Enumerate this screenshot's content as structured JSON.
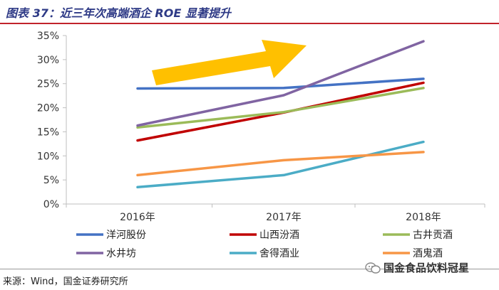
{
  "header": {
    "figure_title": "图表 37：近三年次高端酒企 ROE 显著提升"
  },
  "footer": {
    "source": "来源：Wind，国金证券研究所",
    "watermark": "国金食品饮料冠星"
  },
  "colors": {
    "title": "#2e3a86",
    "rule": "#c1232b",
    "arrow": "#ffc000",
    "grid_axis": "#bfbfbf"
  },
  "chart_data": {
    "type": "line",
    "title": "",
    "xlabel": "",
    "ylabel": "",
    "categories": [
      "2016年",
      "2017年",
      "2018年"
    ],
    "ylim": [
      0,
      35
    ],
    "yticks": [
      "0%",
      "5%",
      "10%",
      "15%",
      "20%",
      "25%",
      "30%",
      "35%"
    ],
    "ytick_values": [
      0,
      5,
      10,
      15,
      20,
      25,
      30,
      35
    ],
    "grid": false,
    "legend_position": "bottom",
    "annotation": "upward-arrow",
    "series": [
      {
        "name": "洋河股份",
        "values": [
          24.0,
          24.1,
          26.0
        ],
        "color": "#4472c4"
      },
      {
        "name": "山西汾酒",
        "values": [
          13.2,
          19.0,
          25.2
        ],
        "color": "#c00000"
      },
      {
        "name": "古井贡酒",
        "values": [
          15.9,
          19.1,
          24.1
        ],
        "color": "#9bbb59"
      },
      {
        "name": "水井坊",
        "values": [
          16.3,
          22.6,
          33.8
        ],
        "color": "#8064a2"
      },
      {
        "name": "舍得酒业",
        "values": [
          3.5,
          6.0,
          12.9
        ],
        "color": "#4bacc6"
      },
      {
        "name": "酒鬼酒",
        "values": [
          6.0,
          9.1,
          10.8
        ],
        "color": "#f79646"
      }
    ]
  }
}
